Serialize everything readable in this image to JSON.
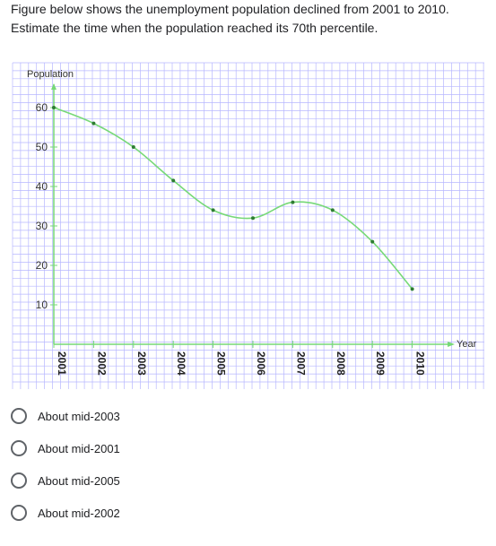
{
  "question": {
    "line1": "Figure below shows the unemployment population declined from 2001 to 2010.",
    "line2": "Estimate the time when the population reached its 70th percentile."
  },
  "chart_data": {
    "type": "line",
    "ylabel": "Population",
    "xlabel": "Year",
    "x": [
      "2001",
      "2002",
      "2003",
      "2004",
      "2005",
      "2006",
      "2007",
      "2008",
      "2009",
      "2010"
    ],
    "series": [
      {
        "values": [
          60,
          56,
          50,
          41.5,
          34,
          32,
          36,
          34,
          26,
          14
        ]
      }
    ],
    "yticks": [
      10,
      20,
      30,
      40,
      50,
      60
    ],
    "ylim": [
      0,
      60
    ],
    "grid": true,
    "colors": {
      "line": "#77d977",
      "grid": "#b7b7ff",
      "point": "#2e7d32",
      "axis": "#77d977"
    }
  },
  "options": [
    {
      "label": "About mid-2003"
    },
    {
      "label": "About mid-2001"
    },
    {
      "label": "About mid-2005"
    },
    {
      "label": "About mid-2002"
    }
  ]
}
